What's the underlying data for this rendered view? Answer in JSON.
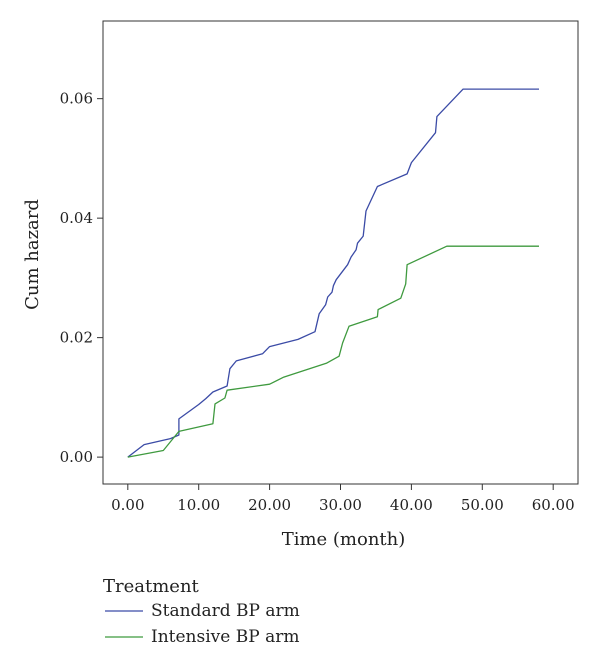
{
  "chart_data": {
    "type": "line",
    "title": "",
    "xlabel": "Time (month)",
    "ylabel": "Cum hazard",
    "xlim": [
      -3.5,
      63.5
    ],
    "ylim": [
      -0.0045,
      0.073
    ],
    "x_ticks": [
      0,
      10,
      20,
      30,
      40,
      50,
      60
    ],
    "x_tick_labels": [
      "0.00",
      "10.00",
      "20.00",
      "30.00",
      "40.00",
      "50.00",
      "60.00"
    ],
    "y_ticks": [
      0,
      0.02,
      0.04,
      0.06
    ],
    "y_tick_labels": [
      "0.00",
      "0.02",
      "0.04",
      "0.06"
    ],
    "grid": false,
    "legend": {
      "title": "Treatment",
      "placement": "bottom-left"
    },
    "series": [
      {
        "name": "Standard BP arm",
        "color": "#3b4ba6",
        "x": [
          0,
          2.3,
          6,
          7.2,
          7.2,
          10,
          11,
          12,
          14,
          14.4,
          15.3,
          19,
          20,
          24,
          26.4,
          27,
          27.9,
          28.2,
          28.8,
          29,
          29.4,
          31,
          31.5,
          32.2,
          32.4,
          33.2,
          33.6,
          35.2,
          39.4,
          40,
          43.4,
          43.6,
          47.3,
          58
        ],
        "y": [
          0,
          0.0021,
          0.0031,
          0.0037,
          0.0064,
          0.0088,
          0.0098,
          0.0109,
          0.0119,
          0.0148,
          0.0161,
          0.0173,
          0.0185,
          0.0197,
          0.021,
          0.024,
          0.0255,
          0.0268,
          0.0276,
          0.0287,
          0.0297,
          0.0322,
          0.0335,
          0.0347,
          0.0358,
          0.037,
          0.0412,
          0.0453,
          0.0474,
          0.0493,
          0.0543,
          0.057,
          0.0616,
          0.0616
        ]
      },
      {
        "name": "Intensive BP arm",
        "color": "#3f9a3f",
        "x": [
          0,
          5,
          7.2,
          12,
          12.3,
          13.7,
          14,
          20,
          22,
          28,
          29.8,
          30.3,
          31.2,
          35.2,
          35.3,
          38.5,
          39.2,
          39.4,
          45,
          58
        ],
        "y": [
          0,
          0.0011,
          0.0043,
          0.0056,
          0.0089,
          0.0099,
          0.0112,
          0.0122,
          0.0134,
          0.0157,
          0.0169,
          0.0191,
          0.0219,
          0.0235,
          0.0247,
          0.0266,
          0.029,
          0.0322,
          0.0353,
          0.0353
        ]
      }
    ]
  }
}
